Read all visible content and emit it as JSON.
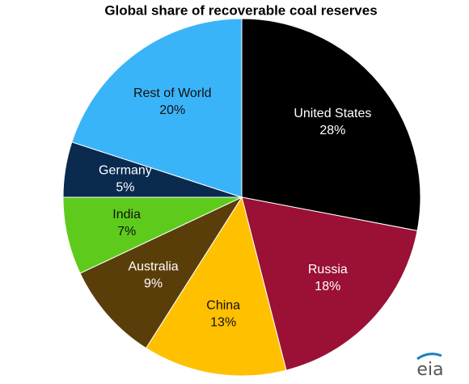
{
  "chart_data": {
    "type": "pie",
    "title": "Global share of recoverable coal reserves",
    "categories": [
      "United States",
      "Russia",
      "China",
      "Australia",
      "India",
      "Germany",
      "Rest of World"
    ],
    "values": [
      28,
      18,
      13,
      9,
      7,
      5,
      20
    ],
    "value_labels": [
      "28%",
      "18%",
      "13%",
      "9%",
      "7%",
      "5%",
      "20%"
    ],
    "colors": [
      "#000000",
      "#9b1035",
      "#ffc000",
      "#5a3e0a",
      "#5ecb1c",
      "#0a2a50",
      "#3ab4f8"
    ]
  },
  "logo": "eia"
}
